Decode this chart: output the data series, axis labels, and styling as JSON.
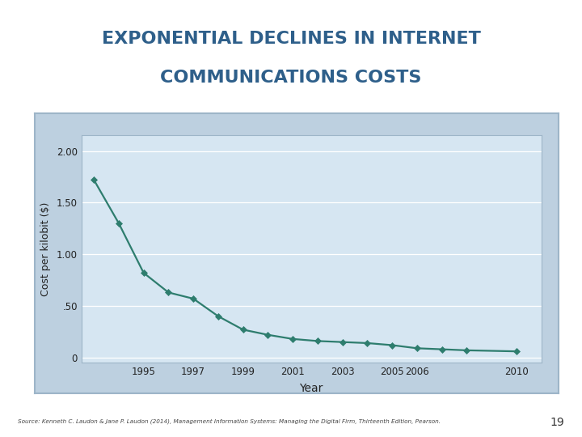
{
  "title_line1": "EXPONENTIAL DECLINES IN INTERNET",
  "title_line2": "COMMUNICATIONS COSTS",
  "title_color": "#2E5F8A",
  "title_fontsize": 16,
  "xlabel": "Year",
  "ylabel": "Cost per kilobit ($)",
  "source_text": "Source: Kenneth C. Laudon & Jane P. Laudon (2014), Management Information Systems: Managing the Digital Firm, Thirteenth Edition, Pearson.",
  "page_number": "19",
  "years": [
    1993,
    1994,
    1995,
    1996,
    1997,
    1998,
    1999,
    2000,
    2001,
    2002,
    2003,
    2004,
    2005,
    2006,
    2007,
    2008,
    2010
  ],
  "costs": [
    1.72,
    1.3,
    0.82,
    0.63,
    0.57,
    0.4,
    0.27,
    0.22,
    0.18,
    0.16,
    0.15,
    0.14,
    0.12,
    0.09,
    0.08,
    0.07,
    0.06
  ],
  "line_color": "#2E7D6E",
  "marker_color": "#2E7D6E",
  "plot_bg_color": "#BDD0E0",
  "inner_plot_bg": "#D6E6F2",
  "chart_border_color": "#9DB5C8",
  "outer_bg_color": "#FFFFFF",
  "yticks": [
    0.0,
    0.5,
    1.0,
    1.5,
    2.0
  ],
  "ytick_labels": [
    "0",
    ".50",
    "1.00",
    "1.50",
    "2.00"
  ],
  "xtick_labels": [
    "1995",
    "1997",
    "1999",
    "2001",
    "2003",
    "2005",
    "2006",
    "2010"
  ],
  "xtick_positions": [
    1995,
    1997,
    1999,
    2001,
    2003,
    2005,
    2006,
    2010
  ],
  "xlim": [
    1992.5,
    2011.0
  ],
  "ylim": [
    -0.05,
    2.15
  ]
}
